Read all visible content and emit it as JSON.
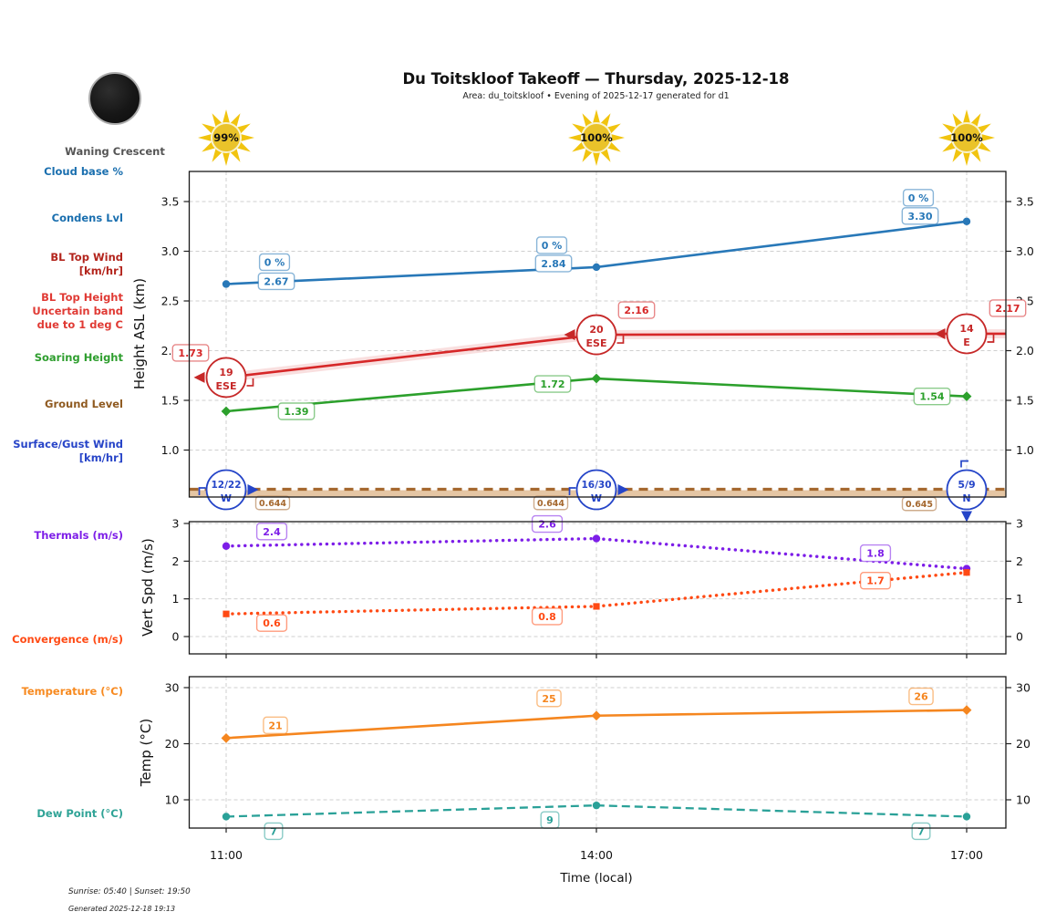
{
  "header": {
    "title": "Du Toitskloof Takeoff — Thursday, 2025-12-18",
    "subtitle": "Area: du_toitskloof • Evening of 2025-12-17 generated for d1"
  },
  "moon": {
    "phase": "Waning Crescent"
  },
  "sun_icons": [
    {
      "time": "11:00",
      "sunshine_pct": "99%"
    },
    {
      "time": "14:00",
      "sunshine_pct": "100%"
    },
    {
      "time": "17:00",
      "sunshine_pct": "100%"
    }
  ],
  "left_labels": {
    "cloud_base": "Cloud base %",
    "condens_lvl": "Condens Lvl",
    "bl_top_wind_1": "BL Top Wind",
    "bl_top_wind_2": "[km/hr]",
    "bl_top_height_1": "BL Top Height",
    "bl_top_height_2": "Uncertain band",
    "bl_top_height_3": "due to 1 deg C",
    "soaring_height": "Soaring Height",
    "ground_level": "Ground Level",
    "surface_wind_1": "Surface/Gust Wind",
    "surface_wind_2": "[km/hr]",
    "thermals": "Thermals (m/s)",
    "convergence": "Convergence (m/s)",
    "temperature": "Temperature (°C)",
    "dew_point": "Dew Point (°C)"
  },
  "axis": {
    "x_ticks": [
      "11:00",
      "14:00",
      "17:00"
    ],
    "x_label": "Time (local)"
  },
  "footer": {
    "sun_times": "Sunrise: 05:40 | Sunset: 19:50",
    "generated": "Generated 2025-12-18 19:13"
  },
  "chart_data": [
    {
      "type": "line",
      "panel": "height",
      "ylabel": "Height ASL (km)",
      "ylim": [
        0.53,
        3.67
      ],
      "yticks": [
        "1.0",
        "1.5",
        "2.0",
        "2.5",
        "3.0",
        "3.5"
      ],
      "x": [
        "11:00",
        "14:00",
        "17:00"
      ],
      "series": [
        {
          "name": "bl-top-height",
          "legend": "BL Top Height Uncertain band due to 1 deg C",
          "color": "#d62728",
          "style": "solid",
          "marker": "none",
          "band": true,
          "values": [
            1.73,
            2.16,
            2.17
          ],
          "point_labels": [
            "1.73",
            "2.16",
            "2.17"
          ]
        },
        {
          "name": "soaring-height",
          "legend": "Soaring Height",
          "color": "#2ca02c",
          "style": "solid",
          "marker": "diamond",
          "values": [
            1.39,
            1.72,
            1.54
          ],
          "point_labels": [
            "1.39",
            "1.72",
            "1.54"
          ]
        },
        {
          "name": "condens-lvl",
          "legend": "Condens Lvl",
          "color": "#2878b8",
          "style": "solid",
          "marker": "circle",
          "values": [
            2.67,
            2.84,
            3.3
          ],
          "point_labels": [
            "2.67",
            "2.84",
            "3.30"
          ]
        },
        {
          "name": "cloud-base-pct",
          "legend": "Cloud base %",
          "color": "#2878b8",
          "style": "none",
          "marker": "none",
          "values": [
            2.67,
            2.84,
            3.3
          ],
          "point_labels": [
            "0 %",
            "0 %",
            "0 %"
          ]
        },
        {
          "name": "ground-level",
          "legend": "Ground Level",
          "color": "#a5682f",
          "style": "ground",
          "marker": "none",
          "values": [
            0.644,
            0.644,
            0.645
          ],
          "point_labels": [
            "0.644",
            "0.644",
            "0.645"
          ]
        },
        {
          "name": "bl-top-wind",
          "legend": "BL Top Wind [km/hr]",
          "color": "#c62828",
          "style": "wind",
          "values": [
            1.73,
            2.16,
            2.17
          ],
          "wind": [
            {
              "speed": "19",
              "dir": "ESE"
            },
            {
              "speed": "20",
              "dir": "ESE"
            },
            {
              "speed": "14",
              "dir": "E"
            }
          ]
        },
        {
          "name": "surface-wind",
          "legend": "Surface/Gust Wind [km/hr]",
          "color": "#2545c8",
          "style": "wind-surface",
          "wind": [
            {
              "speed": "12/22",
              "dir": "W"
            },
            {
              "speed": "16/30",
              "dir": "W"
            },
            {
              "speed": "5/9",
              "dir": "N"
            }
          ]
        }
      ]
    },
    {
      "type": "line",
      "panel": "vertspd",
      "ylabel": "Vert Spd (m/s)",
      "ylim": [
        -0.45,
        3.05
      ],
      "yticks": [
        "0",
        "1",
        "2",
        "3"
      ],
      "x": [
        "11:00",
        "14:00",
        "17:00"
      ],
      "series": [
        {
          "name": "thermals",
          "legend": "Thermals (m/s)",
          "color": "#7d1ee8",
          "style": "dotted",
          "marker": "circle",
          "values": [
            2.4,
            2.6,
            1.8
          ],
          "point_labels": [
            "2.4",
            "2.6",
            "1.8"
          ]
        },
        {
          "name": "convergence",
          "legend": "Convergence (m/s)",
          "color": "#ff4a14",
          "style": "dotted",
          "marker": "square",
          "values": [
            0.6,
            0.8,
            1.7
          ],
          "point_labels": [
            "0.6",
            "0.8",
            "1.7"
          ]
        }
      ]
    },
    {
      "type": "line",
      "panel": "temp",
      "ylabel": "Temp (°C)",
      "ylim": [
        5.2,
        32
      ],
      "yticks": [
        "10",
        "20",
        "30"
      ],
      "x": [
        "11:00",
        "14:00",
        "17:00"
      ],
      "series": [
        {
          "name": "temperature",
          "legend": "Temperature (°C)",
          "color": "#f5861f",
          "style": "solid",
          "marker": "diamond",
          "values": [
            21,
            25,
            26
          ],
          "point_labels": [
            "21",
            "25",
            "26"
          ]
        },
        {
          "name": "dew-point",
          "legend": "Dew Point (°C)",
          "color": "#2aa198",
          "style": "dashed",
          "marker": "circle",
          "values": [
            7,
            9,
            7
          ],
          "point_labels": [
            "7",
            "9",
            "7"
          ]
        }
      ]
    }
  ]
}
